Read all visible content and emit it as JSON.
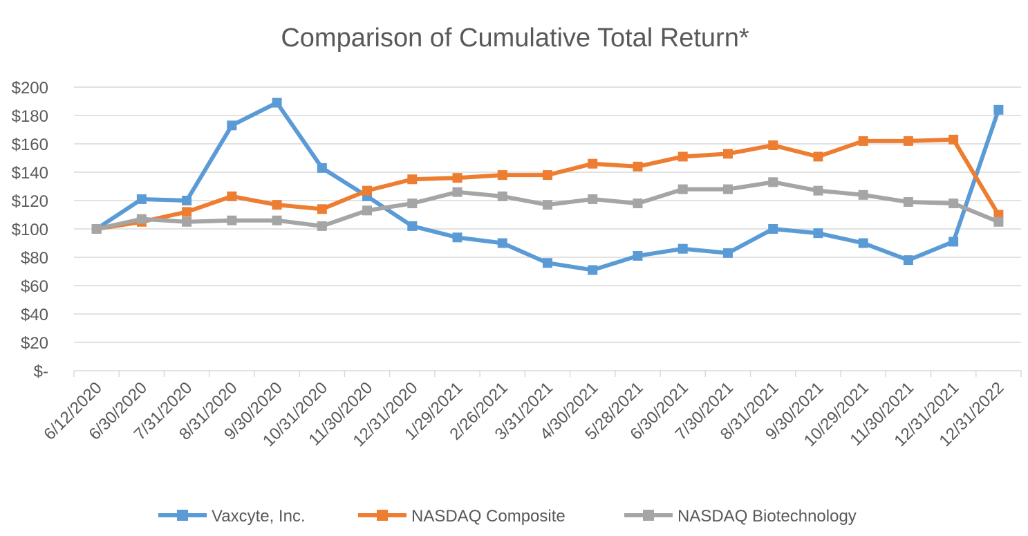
{
  "chart_data": {
    "type": "line",
    "title": "Comparison of Cumulative Total Return*",
    "xlabel": "",
    "ylabel": "",
    "ylim": [
      0,
      200
    ],
    "y_ticks": [
      {
        "value": 0,
        "label": "$-"
      },
      {
        "value": 20,
        "label": "$20"
      },
      {
        "value": 40,
        "label": "$40"
      },
      {
        "value": 60,
        "label": "$60"
      },
      {
        "value": 80,
        "label": "$80"
      },
      {
        "value": 100,
        "label": "$100"
      },
      {
        "value": 120,
        "label": "$120"
      },
      {
        "value": 140,
        "label": "$140"
      },
      {
        "value": 160,
        "label": "$160"
      },
      {
        "value": 180,
        "label": "$180"
      },
      {
        "value": 200,
        "label": "$200"
      }
    ],
    "grid": true,
    "legend_position": "bottom",
    "categories": [
      "6/12/2020",
      "6/30/2020",
      "7/31/2020",
      "8/31/2020",
      "9/30/2020",
      "10/31/2020",
      "11/30/2020",
      "12/31/2020",
      "1/29/2021",
      "2/26/2021",
      "3/31/2021",
      "4/30/2021",
      "5/28/2021",
      "6/30/2021",
      "7/30/2021",
      "8/31/2021",
      "9/30/2021",
      "10/29/2021",
      "11/30/2021",
      "12/31/2021",
      "12/31/2022"
    ],
    "series": [
      {
        "name": "Vaxcyte, Inc.",
        "color": "#5b9bd5",
        "marker": "square",
        "values": [
          100,
          121,
          120,
          173,
          189,
          143,
          123,
          102,
          94,
          90,
          76,
          71,
          81,
          86,
          83,
          100,
          97,
          90,
          78,
          91,
          184
        ]
      },
      {
        "name": "NASDAQ Composite",
        "color": "#ed7d31",
        "marker": "square",
        "values": [
          100,
          105,
          112,
          123,
          117,
          114,
          127,
          135,
          136,
          138,
          138,
          146,
          144,
          151,
          153,
          159,
          151,
          162,
          162,
          163,
          110
        ]
      },
      {
        "name": "NASDAQ Biotechnology",
        "color": "#a5a5a5",
        "marker": "square",
        "values": [
          100,
          107,
          105,
          106,
          106,
          102,
          113,
          118,
          126,
          123,
          117,
          121,
          118,
          128,
          128,
          133,
          127,
          124,
          119,
          118,
          105
        ]
      }
    ]
  }
}
